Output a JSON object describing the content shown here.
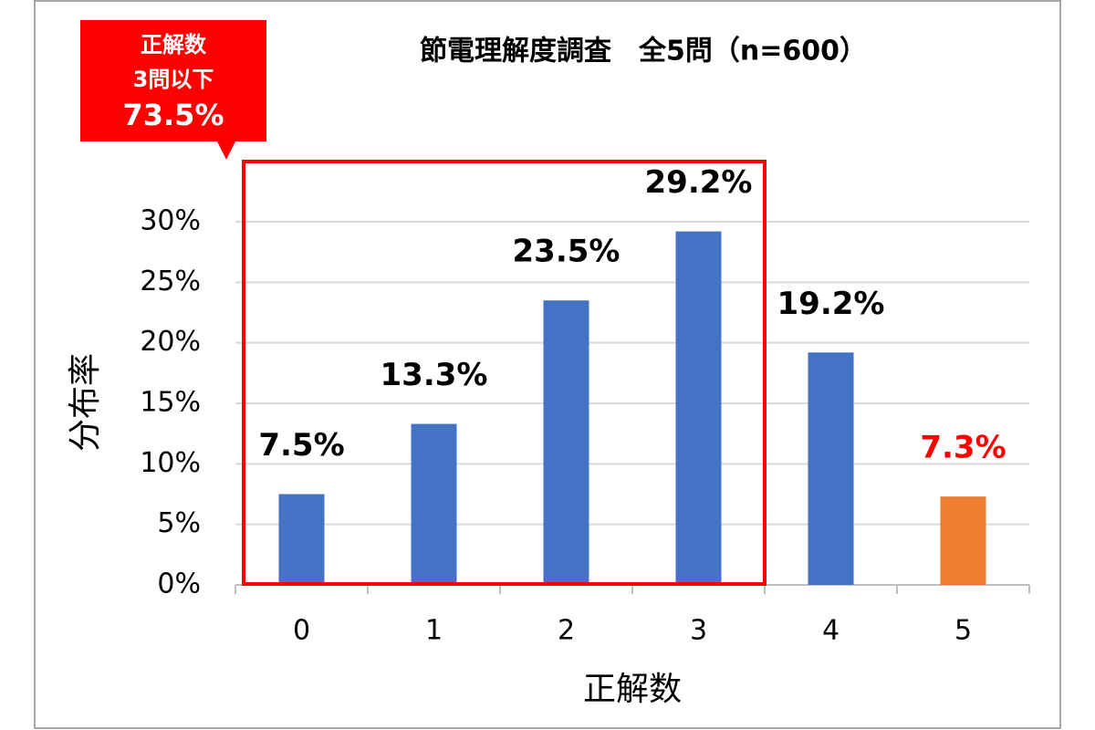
{
  "chart_data": {
    "type": "bar",
    "title": "節電理解度調査　全5問（n=600）",
    "x_label": "正解数",
    "y_label": "分布率",
    "categories": [
      "0",
      "1",
      "2",
      "3",
      "4",
      "5"
    ],
    "values": [
      7.5,
      13.3,
      23.5,
      29.2,
      19.2,
      7.3
    ],
    "value_labels": [
      "7.5%",
      "13.3%",
      "23.5%",
      "29.2%",
      "19.2%",
      "7.3%"
    ],
    "colors": [
      "#4472c4",
      "#4472c4",
      "#4472c4",
      "#4472c4",
      "#4472c4",
      "#ed7d31"
    ],
    "value_label_colors": [
      "#000000",
      "#000000",
      "#000000",
      "#000000",
      "#000000",
      "#ff0000"
    ],
    "ylim": [
      0,
      30
    ],
    "yticks": [
      {
        "value": 0,
        "label": "0%"
      },
      {
        "value": 5,
        "label": "5%"
      },
      {
        "value": 10,
        "label": "10%"
      },
      {
        "value": 15,
        "label": "15%"
      },
      {
        "value": 20,
        "label": "20%"
      },
      {
        "value": 25,
        "label": "25%"
      },
      {
        "value": 30,
        "label": "30%"
      }
    ],
    "grid": true,
    "annotation": [
      "正解数",
      "3問以下",
      "73.5%"
    ]
  }
}
